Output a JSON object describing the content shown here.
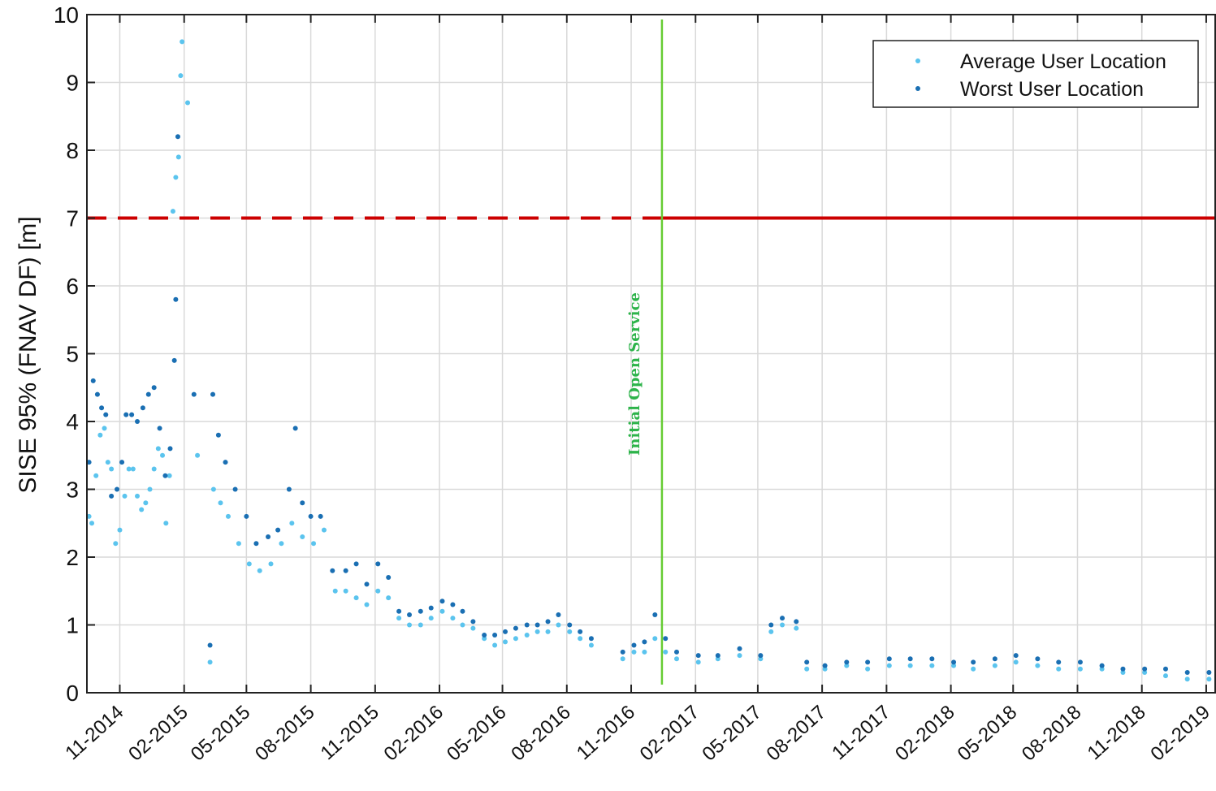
{
  "chart_data": {
    "type": "scatter",
    "title": "",
    "xlabel": "",
    "ylabel": "SISE 95% (FNAV DF) [m]",
    "ylim": [
      0,
      10
    ],
    "xlim": [
      "2014-09-15",
      "2019-02-15"
    ],
    "y_ticks": [
      0,
      1,
      2,
      3,
      4,
      5,
      6,
      7,
      8,
      9,
      10
    ],
    "x_ticks": [
      {
        "date": "2014-11-01",
        "label": "11-2014"
      },
      {
        "date": "2015-02-01",
        "label": "02-2015"
      },
      {
        "date": "2015-05-01",
        "label": "05-2015"
      },
      {
        "date": "2015-08-01",
        "label": "08-2015"
      },
      {
        "date": "2015-11-01",
        "label": "11-2015"
      },
      {
        "date": "2016-02-01",
        "label": "02-2016"
      },
      {
        "date": "2016-05-01",
        "label": "05-2016"
      },
      {
        "date": "2016-08-01",
        "label": "08-2016"
      },
      {
        "date": "2016-11-01",
        "label": "11-2016"
      },
      {
        "date": "2017-02-01",
        "label": "02-2017"
      },
      {
        "date": "2017-05-01",
        "label": "05-2017"
      },
      {
        "date": "2017-08-01",
        "label": "08-2017"
      },
      {
        "date": "2017-11-01",
        "label": "11-2017"
      },
      {
        "date": "2018-02-01",
        "label": "02-2018"
      },
      {
        "date": "2018-05-01",
        "label": "05-2018"
      },
      {
        "date": "2018-08-01",
        "label": "08-2018"
      },
      {
        "date": "2018-11-01",
        "label": "11-2018"
      },
      {
        "date": "2019-02-01",
        "label": "02-2019"
      }
    ],
    "grid": true,
    "legend_position": "top-right",
    "series": [
      {
        "name": "Average User Location",
        "color": "#5bc4ee",
        "points": [
          [
            "2014-09-18",
            2.6
          ],
          [
            "2014-09-22",
            2.5
          ],
          [
            "2014-09-28",
            3.2
          ],
          [
            "2014-10-04",
            3.8
          ],
          [
            "2014-10-10",
            3.9
          ],
          [
            "2014-10-15",
            3.4
          ],
          [
            "2014-10-20",
            3.3
          ],
          [
            "2014-10-26",
            2.2
          ],
          [
            "2014-11-01",
            2.4
          ],
          [
            "2014-11-08",
            2.9
          ],
          [
            "2014-11-14",
            3.3
          ],
          [
            "2014-11-20",
            3.3
          ],
          [
            "2014-11-26",
            2.9
          ],
          [
            "2014-12-02",
            2.7
          ],
          [
            "2014-12-08",
            2.8
          ],
          [
            "2014-12-14",
            3.0
          ],
          [
            "2014-12-20",
            3.3
          ],
          [
            "2014-12-26",
            3.6
          ],
          [
            "2015-01-01",
            3.5
          ],
          [
            "2015-01-06",
            2.5
          ],
          [
            "2015-01-11",
            3.2
          ],
          [
            "2015-01-16",
            7.1
          ],
          [
            "2015-01-20",
            7.6
          ],
          [
            "2015-01-24",
            7.9
          ],
          [
            "2015-01-29",
            9.6
          ],
          [
            "2015-01-27",
            9.1
          ],
          [
            "2015-02-06",
            8.7
          ],
          [
            "2015-02-20",
            3.5
          ],
          [
            "2015-03-10",
            0.45
          ],
          [
            "2015-03-15",
            3.0
          ],
          [
            "2015-03-25",
            2.8
          ],
          [
            "2015-04-05",
            2.6
          ],
          [
            "2015-04-20",
            2.2
          ],
          [
            "2015-05-05",
            1.9
          ],
          [
            "2015-05-20",
            1.8
          ],
          [
            "2015-06-05",
            1.9
          ],
          [
            "2015-06-20",
            2.2
          ],
          [
            "2015-07-05",
            2.5
          ],
          [
            "2015-07-20",
            2.3
          ],
          [
            "2015-08-05",
            2.2
          ],
          [
            "2015-08-20",
            2.4
          ],
          [
            "2015-09-05",
            1.5
          ],
          [
            "2015-09-20",
            1.5
          ],
          [
            "2015-10-05",
            1.4
          ],
          [
            "2015-10-20",
            1.3
          ],
          [
            "2015-11-05",
            1.5
          ],
          [
            "2015-11-20",
            1.4
          ],
          [
            "2015-12-05",
            1.1
          ],
          [
            "2015-12-20",
            1.0
          ],
          [
            "2016-01-05",
            1.0
          ],
          [
            "2016-01-20",
            1.1
          ],
          [
            "2016-02-05",
            1.2
          ],
          [
            "2016-02-20",
            1.1
          ],
          [
            "2016-03-05",
            1.0
          ],
          [
            "2016-03-20",
            0.95
          ],
          [
            "2016-04-05",
            0.8
          ],
          [
            "2016-04-20",
            0.7
          ],
          [
            "2016-05-05",
            0.75
          ],
          [
            "2016-05-20",
            0.8
          ],
          [
            "2016-06-05",
            0.85
          ],
          [
            "2016-06-20",
            0.9
          ],
          [
            "2016-07-05",
            0.9
          ],
          [
            "2016-07-20",
            1.0
          ],
          [
            "2016-08-05",
            0.9
          ],
          [
            "2016-08-20",
            0.8
          ],
          [
            "2016-09-05",
            0.7
          ],
          [
            "2016-10-20",
            0.5
          ],
          [
            "2016-11-05",
            0.6
          ],
          [
            "2016-11-20",
            0.6
          ],
          [
            "2016-12-05",
            0.8
          ],
          [
            "2016-12-20",
            0.6
          ],
          [
            "2017-01-05",
            0.5
          ],
          [
            "2017-02-05",
            0.45
          ],
          [
            "2017-03-05",
            0.5
          ],
          [
            "2017-04-05",
            0.55
          ],
          [
            "2017-05-05",
            0.5
          ],
          [
            "2017-05-20",
            0.9
          ],
          [
            "2017-06-05",
            1.0
          ],
          [
            "2017-06-25",
            0.95
          ],
          [
            "2017-07-10",
            0.35
          ],
          [
            "2017-08-05",
            0.35
          ],
          [
            "2017-09-05",
            0.4
          ],
          [
            "2017-10-05",
            0.35
          ],
          [
            "2017-11-05",
            0.4
          ],
          [
            "2017-12-05",
            0.4
          ],
          [
            "2018-01-05",
            0.4
          ],
          [
            "2018-02-05",
            0.4
          ],
          [
            "2018-03-05",
            0.35
          ],
          [
            "2018-04-05",
            0.4
          ],
          [
            "2018-05-05",
            0.45
          ],
          [
            "2018-06-05",
            0.4
          ],
          [
            "2018-07-05",
            0.35
          ],
          [
            "2018-08-05",
            0.35
          ],
          [
            "2018-09-05",
            0.35
          ],
          [
            "2018-10-05",
            0.3
          ],
          [
            "2018-11-05",
            0.3
          ],
          [
            "2018-12-05",
            0.25
          ],
          [
            "2019-01-05",
            0.2
          ],
          [
            "2019-02-05",
            0.2
          ]
        ]
      },
      {
        "name": "Worst User Location",
        "color": "#1a6fb3",
        "points": [
          [
            "2014-09-18",
            3.4
          ],
          [
            "2014-09-24",
            4.6
          ],
          [
            "2014-09-30",
            4.4
          ],
          [
            "2014-10-06",
            4.2
          ],
          [
            "2014-10-12",
            4.1
          ],
          [
            "2014-10-20",
            2.9
          ],
          [
            "2014-10-28",
            3.0
          ],
          [
            "2014-11-04",
            3.4
          ],
          [
            "2014-11-10",
            4.1
          ],
          [
            "2014-11-18",
            4.1
          ],
          [
            "2014-11-26",
            4.0
          ],
          [
            "2014-12-04",
            4.2
          ],
          [
            "2014-12-12",
            4.4
          ],
          [
            "2014-12-20",
            4.5
          ],
          [
            "2014-12-28",
            3.9
          ],
          [
            "2015-01-05",
            3.2
          ],
          [
            "2015-01-12",
            3.6
          ],
          [
            "2015-01-18",
            4.9
          ],
          [
            "2015-01-20",
            5.8
          ],
          [
            "2015-01-23",
            8.2
          ],
          [
            "2015-02-15",
            4.4
          ],
          [
            "2015-03-10",
            0.7
          ],
          [
            "2015-03-14",
            4.4
          ],
          [
            "2015-03-22",
            3.8
          ],
          [
            "2015-04-01",
            3.4
          ],
          [
            "2015-04-15",
            3.0
          ],
          [
            "2015-05-01",
            2.6
          ],
          [
            "2015-05-15",
            2.2
          ],
          [
            "2015-06-01",
            2.3
          ],
          [
            "2015-06-15",
            2.4
          ],
          [
            "2015-07-01",
            3.0
          ],
          [
            "2015-07-10",
            3.9
          ],
          [
            "2015-07-20",
            2.8
          ],
          [
            "2015-08-01",
            2.6
          ],
          [
            "2015-08-15",
            2.6
          ],
          [
            "2015-09-01",
            1.8
          ],
          [
            "2015-09-20",
            1.8
          ],
          [
            "2015-10-05",
            1.9
          ],
          [
            "2015-10-20",
            1.6
          ],
          [
            "2015-11-05",
            1.9
          ],
          [
            "2015-11-20",
            1.7
          ],
          [
            "2015-12-05",
            1.2
          ],
          [
            "2015-12-20",
            1.15
          ],
          [
            "2016-01-05",
            1.2
          ],
          [
            "2016-01-20",
            1.25
          ],
          [
            "2016-02-05",
            1.35
          ],
          [
            "2016-02-20",
            1.3
          ],
          [
            "2016-03-05",
            1.2
          ],
          [
            "2016-03-20",
            1.05
          ],
          [
            "2016-04-05",
            0.85
          ],
          [
            "2016-04-20",
            0.85
          ],
          [
            "2016-05-05",
            0.9
          ],
          [
            "2016-05-20",
            0.95
          ],
          [
            "2016-06-05",
            1.0
          ],
          [
            "2016-06-20",
            1.0
          ],
          [
            "2016-07-05",
            1.05
          ],
          [
            "2016-07-20",
            1.15
          ],
          [
            "2016-08-05",
            1.0
          ],
          [
            "2016-08-20",
            0.9
          ],
          [
            "2016-09-05",
            0.8
          ],
          [
            "2016-10-20",
            0.6
          ],
          [
            "2016-11-05",
            0.7
          ],
          [
            "2016-11-20",
            0.75
          ],
          [
            "2016-12-05",
            1.15
          ],
          [
            "2016-12-20",
            0.8
          ],
          [
            "2017-01-05",
            0.6
          ],
          [
            "2017-02-05",
            0.55
          ],
          [
            "2017-03-05",
            0.55
          ],
          [
            "2017-04-05",
            0.65
          ],
          [
            "2017-05-05",
            0.55
          ],
          [
            "2017-05-20",
            1.0
          ],
          [
            "2017-06-05",
            1.1
          ],
          [
            "2017-06-25",
            1.05
          ],
          [
            "2017-07-10",
            0.45
          ],
          [
            "2017-08-05",
            0.4
          ],
          [
            "2017-09-05",
            0.45
          ],
          [
            "2017-10-05",
            0.45
          ],
          [
            "2017-11-05",
            0.5
          ],
          [
            "2017-12-05",
            0.5
          ],
          [
            "2018-01-05",
            0.5
          ],
          [
            "2018-02-05",
            0.45
          ],
          [
            "2018-03-05",
            0.45
          ],
          [
            "2018-04-05",
            0.5
          ],
          [
            "2018-05-05",
            0.55
          ],
          [
            "2018-06-05",
            0.5
          ],
          [
            "2018-07-05",
            0.45
          ],
          [
            "2018-08-05",
            0.45
          ],
          [
            "2018-09-05",
            0.4
          ],
          [
            "2018-10-05",
            0.35
          ],
          [
            "2018-11-05",
            0.35
          ],
          [
            "2018-12-05",
            0.35
          ],
          [
            "2019-01-05",
            0.3
          ],
          [
            "2019-02-05",
            0.3
          ]
        ]
      }
    ],
    "threshold": {
      "value": 7,
      "color": "#cc0000",
      "dashed_before": "2016-12-15",
      "solid_after": "2016-12-15"
    },
    "vertical_marker": {
      "date": "2016-12-15",
      "color": "#66cc33",
      "label": "Initial Open Service"
    }
  }
}
